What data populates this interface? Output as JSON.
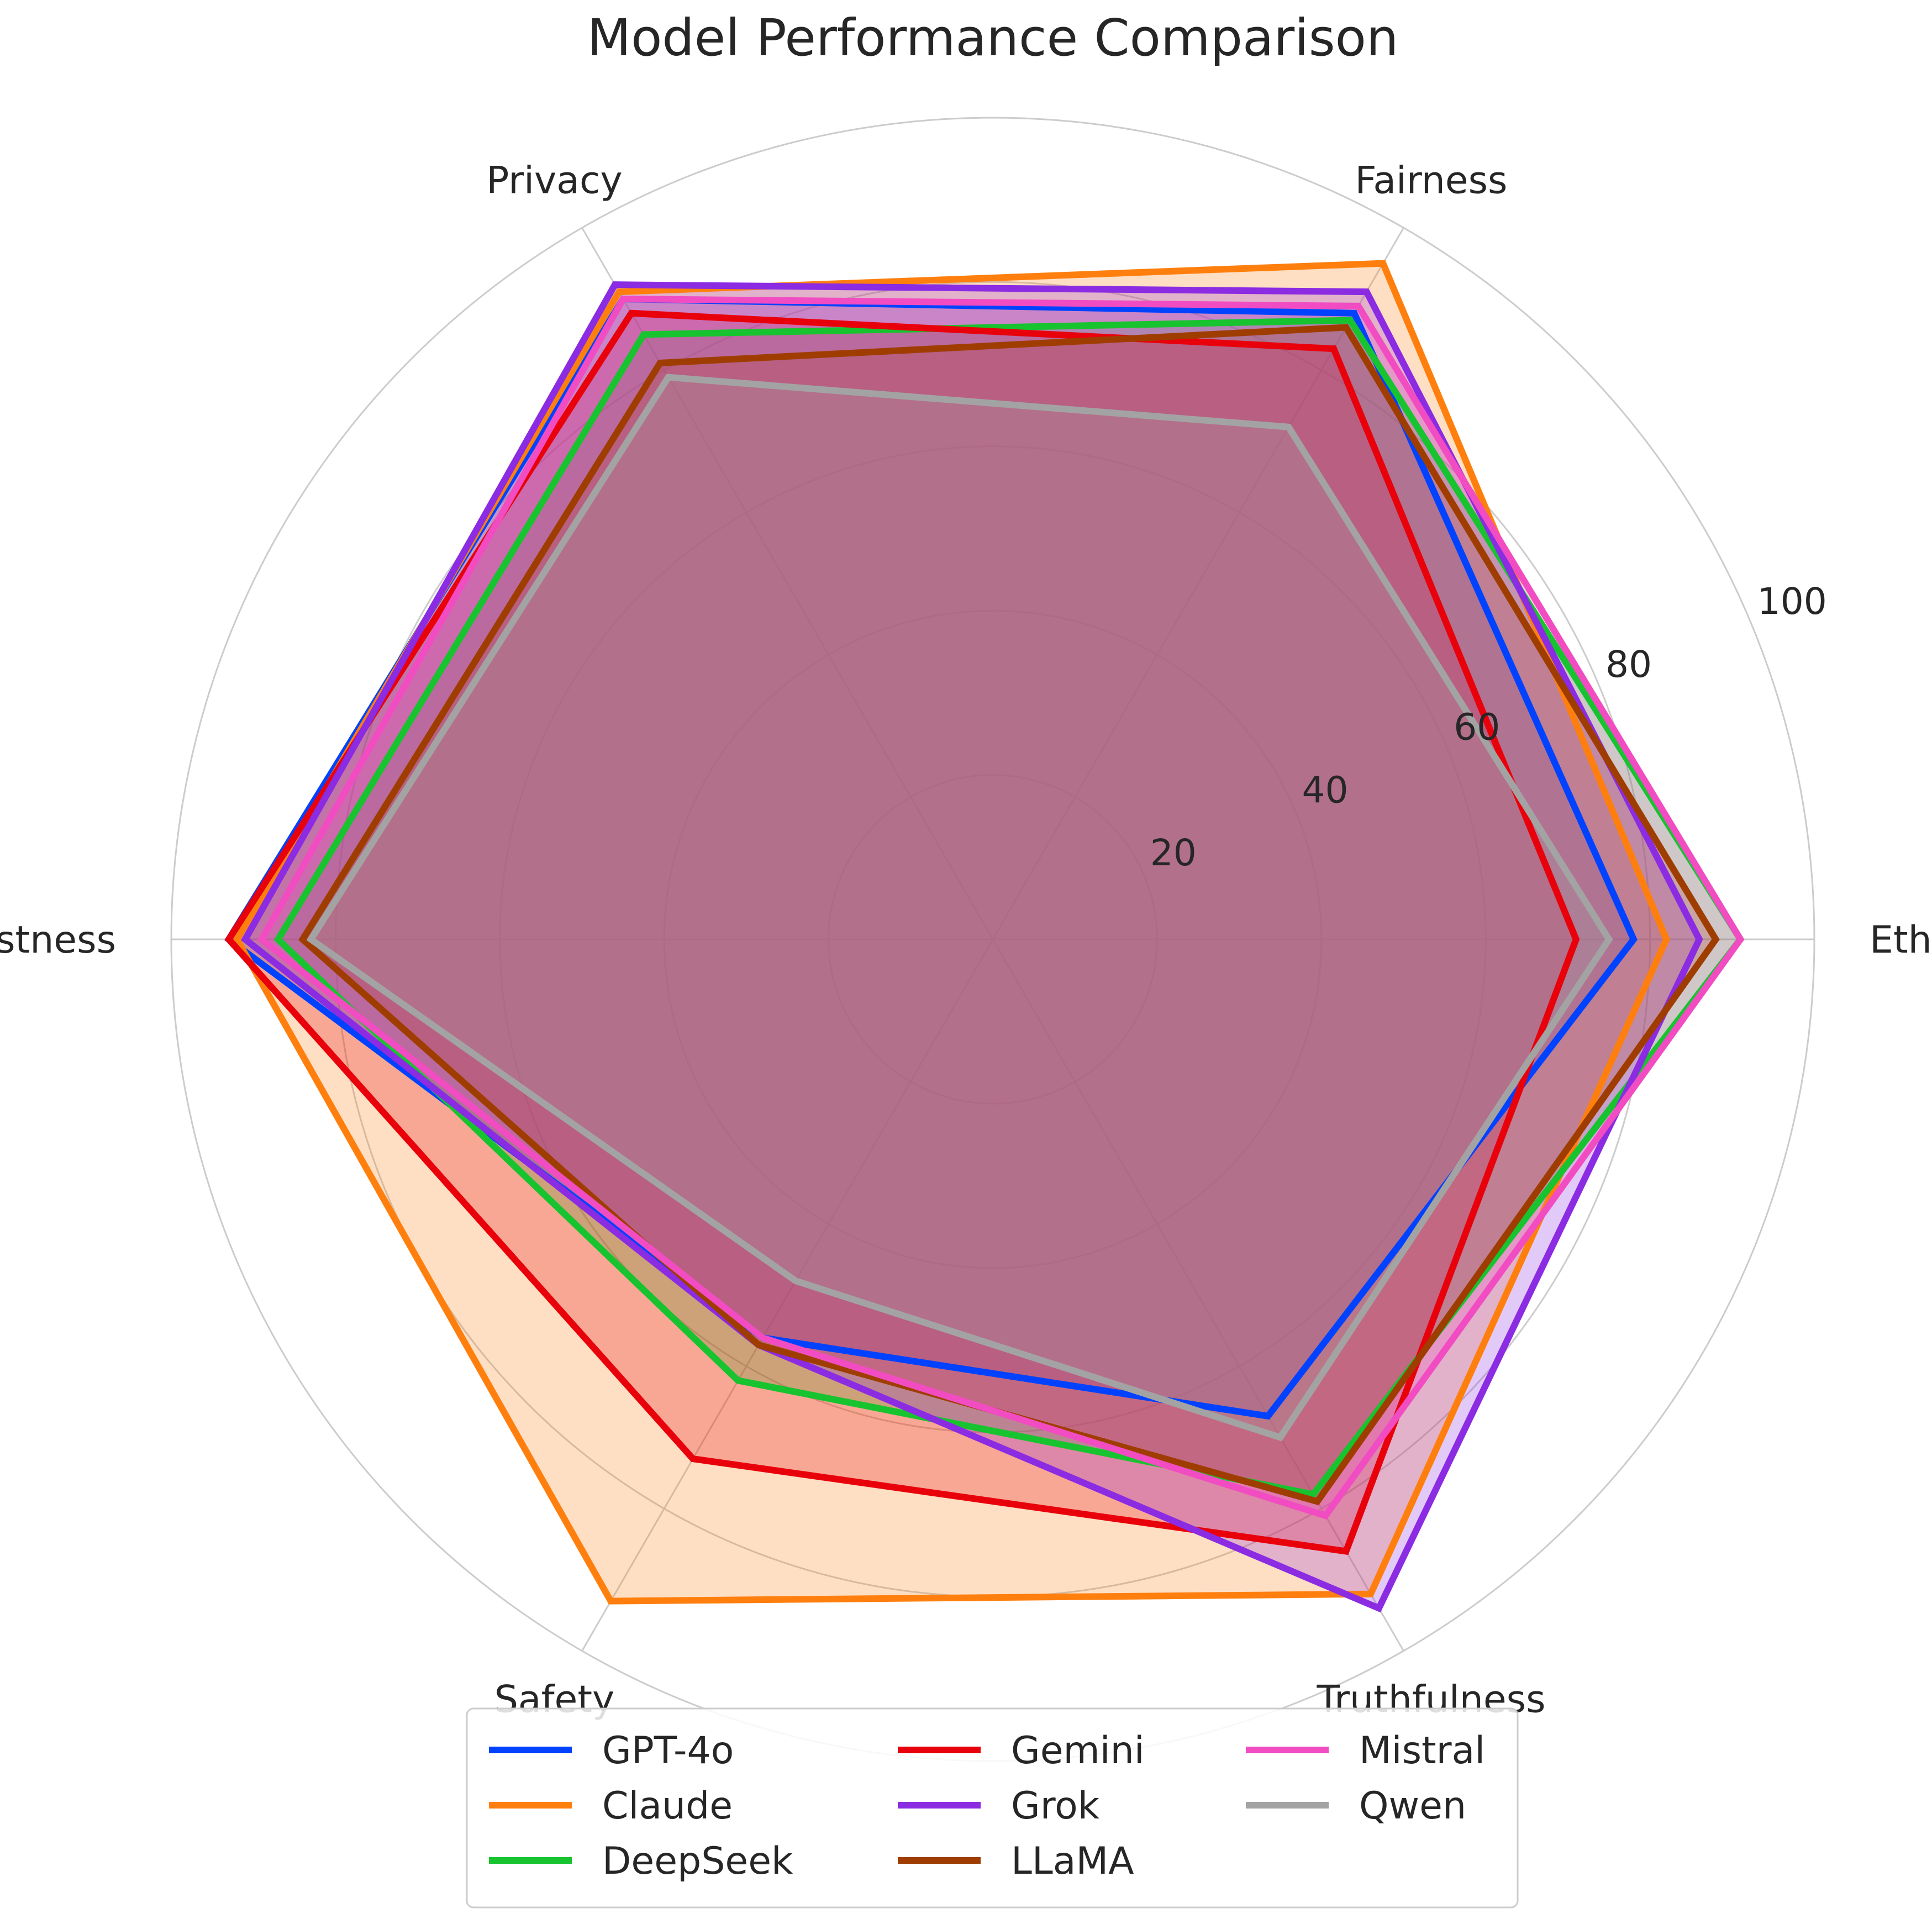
{
  "chart_data": {
    "type": "radar",
    "title": "Model Performance Comparison",
    "axes": [
      "Ethics",
      "Fairness",
      "Privacy",
      "Robustness",
      "Safety",
      "Truthfulness"
    ],
    "rlim": [
      0,
      100
    ],
    "rticks": [
      20,
      40,
      60,
      80,
      100
    ],
    "grid": true,
    "legend": "bottom-center",
    "series": [
      {
        "name": "GPT-4o",
        "color": "#0042ff",
        "values": [
          78,
          88,
          90,
          93,
          56,
          67
        ]
      },
      {
        "name": "Claude",
        "color": "#ff7f0e",
        "values": [
          82,
          95,
          91,
          92,
          93,
          92
        ]
      },
      {
        "name": "DeepSeek",
        "color": "#17c32f",
        "values": [
          91,
          87,
          85,
          87,
          62,
          78
        ]
      },
      {
        "name": "Gemini",
        "color": "#e8000b",
        "values": [
          71,
          83,
          88,
          93,
          73,
          86
        ]
      },
      {
        "name": "Grok",
        "color": "#8b2be2",
        "values": [
          86,
          91,
          92,
          91,
          57,
          94
        ]
      },
      {
        "name": "LLaMA",
        "color": "#9f3d00",
        "values": [
          88,
          86,
          81,
          84,
          57,
          79
        ]
      },
      {
        "name": "Mistral",
        "color": "#f14cc1",
        "values": [
          91,
          89,
          90,
          89,
          56,
          81
        ]
      },
      {
        "name": "Qwen",
        "color": "#a3a3a3",
        "values": [
          75,
          72,
          79,
          83,
          48,
          70
        ]
      }
    ]
  }
}
